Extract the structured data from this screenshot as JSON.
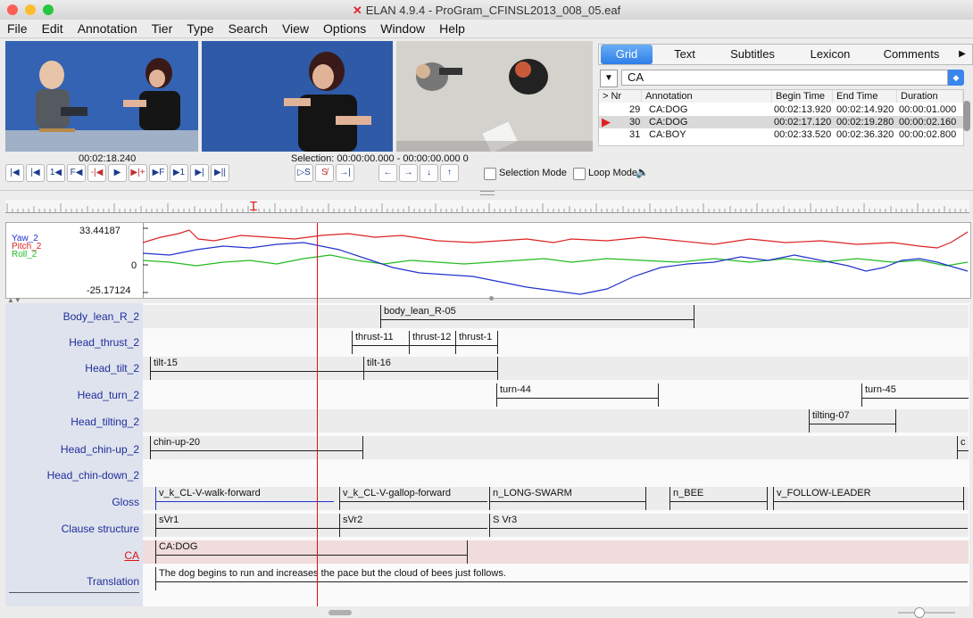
{
  "window": {
    "title": "ELAN 4.9.4 - ProGram_CFINSL2013_008_05.eaf",
    "logo_icon": "elan-logo-icon"
  },
  "menu": [
    "File",
    "Edit",
    "Annotation",
    "Tier",
    "Type",
    "Search",
    "View",
    "Options",
    "Window",
    "Help"
  ],
  "tabs": [
    "Grid",
    "Text",
    "Subtitles",
    "Lexicon",
    "Comments"
  ],
  "tab_more": "▶",
  "grid": {
    "tier": "CA",
    "columns": [
      "> Nr",
      "Annotation",
      "Begin Time",
      "End Time",
      "Duration"
    ],
    "rows": [
      {
        "nr": "29",
        "annotation": "CA:DOG",
        "begin": "00:02:13.920",
        "end": "00:02:14.920",
        "duration": "00:00:01.000"
      },
      {
        "nr": "30",
        "annotation": "CA:DOG",
        "begin": "00:02:17.120",
        "end": "00:02:19.280",
        "duration": "00:00:02.160"
      },
      {
        "nr": "31",
        "annotation": "CA:BOY",
        "begin": "00:02:33.520",
        "end": "00:02:36.320",
        "duration": "00:00:02.800"
      }
    ]
  },
  "media": {
    "current_time": "00:02:18.240",
    "selection": "Selection: 00:00:00.000 - 00:00:00.000  0"
  },
  "controls": {
    "selection_mode": "Selection Mode",
    "loop_mode": "Loop Mode",
    "buttons": [
      "|◀",
      "|◀",
      "1◀",
      "F◀",
      "-|◀",
      "▶",
      "▶|+",
      "▶F",
      "▶1",
      "▶|",
      "▶||",
      "▷S",
      "S̸",
      "→|",
      "←",
      "→",
      "↓",
      "↑"
    ]
  },
  "timeseries": {
    "ymax": "33.44187",
    "ymid": "0",
    "ymin": "-25.17124",
    "series": [
      {
        "name": "Yaw_2",
        "color": "#2233cc"
      },
      {
        "name": "Pitch_2",
        "color": "#dd2222"
      },
      {
        "name": "Roll_2",
        "color": "#22bb22"
      }
    ]
  },
  "tiers": [
    {
      "name": "Body_lean_R_2",
      "annotations": [
        {
          "label": "body_lean_R-05"
        }
      ]
    },
    {
      "name": "Head_thrust_2",
      "annotations": [
        {
          "label": "thrust-11"
        },
        {
          "label": "thrust-12"
        },
        {
          "label": "thrust-1"
        }
      ]
    },
    {
      "name": "Head_tilt_2",
      "annotations": [
        {
          "label": "tilt-15"
        },
        {
          "label": "tilt-16"
        }
      ]
    },
    {
      "name": "Head_turn_2",
      "annotations": [
        {
          "label": "turn-44"
        },
        {
          "label": "turn-45"
        }
      ]
    },
    {
      "name": "Head_tilting_2",
      "annotations": [
        {
          "label": "tilting-07"
        }
      ]
    },
    {
      "name": "Head_chin-up_2",
      "annotations": [
        {
          "label": "chin-up-20"
        },
        {
          "label": "c"
        }
      ]
    },
    {
      "name": "Head_chin-down_2",
      "annotations": []
    },
    {
      "name": "Gloss",
      "annotations": [
        {
          "label": "v_k_CL-V-walk-forward"
        },
        {
          "label": "v_k_CL-V-gallop-forward"
        },
        {
          "label": "n_LONG-SWARM"
        },
        {
          "label": "n_BEE"
        },
        {
          "label": "v_FOLLOW-LEADER"
        }
      ]
    },
    {
      "name": "Clause structure",
      "annotations": [
        {
          "label": "sVr1"
        },
        {
          "label": "sVr2"
        },
        {
          "label": "S Vr3"
        }
      ]
    },
    {
      "name": "CA",
      "annotations": [
        {
          "label": "CA:DOG"
        }
      ]
    },
    {
      "name": "Translation",
      "annotations": [
        {
          "label": "The dog begins to run and increases the pace but the cloud of bees just follows."
        }
      ]
    }
  ]
}
